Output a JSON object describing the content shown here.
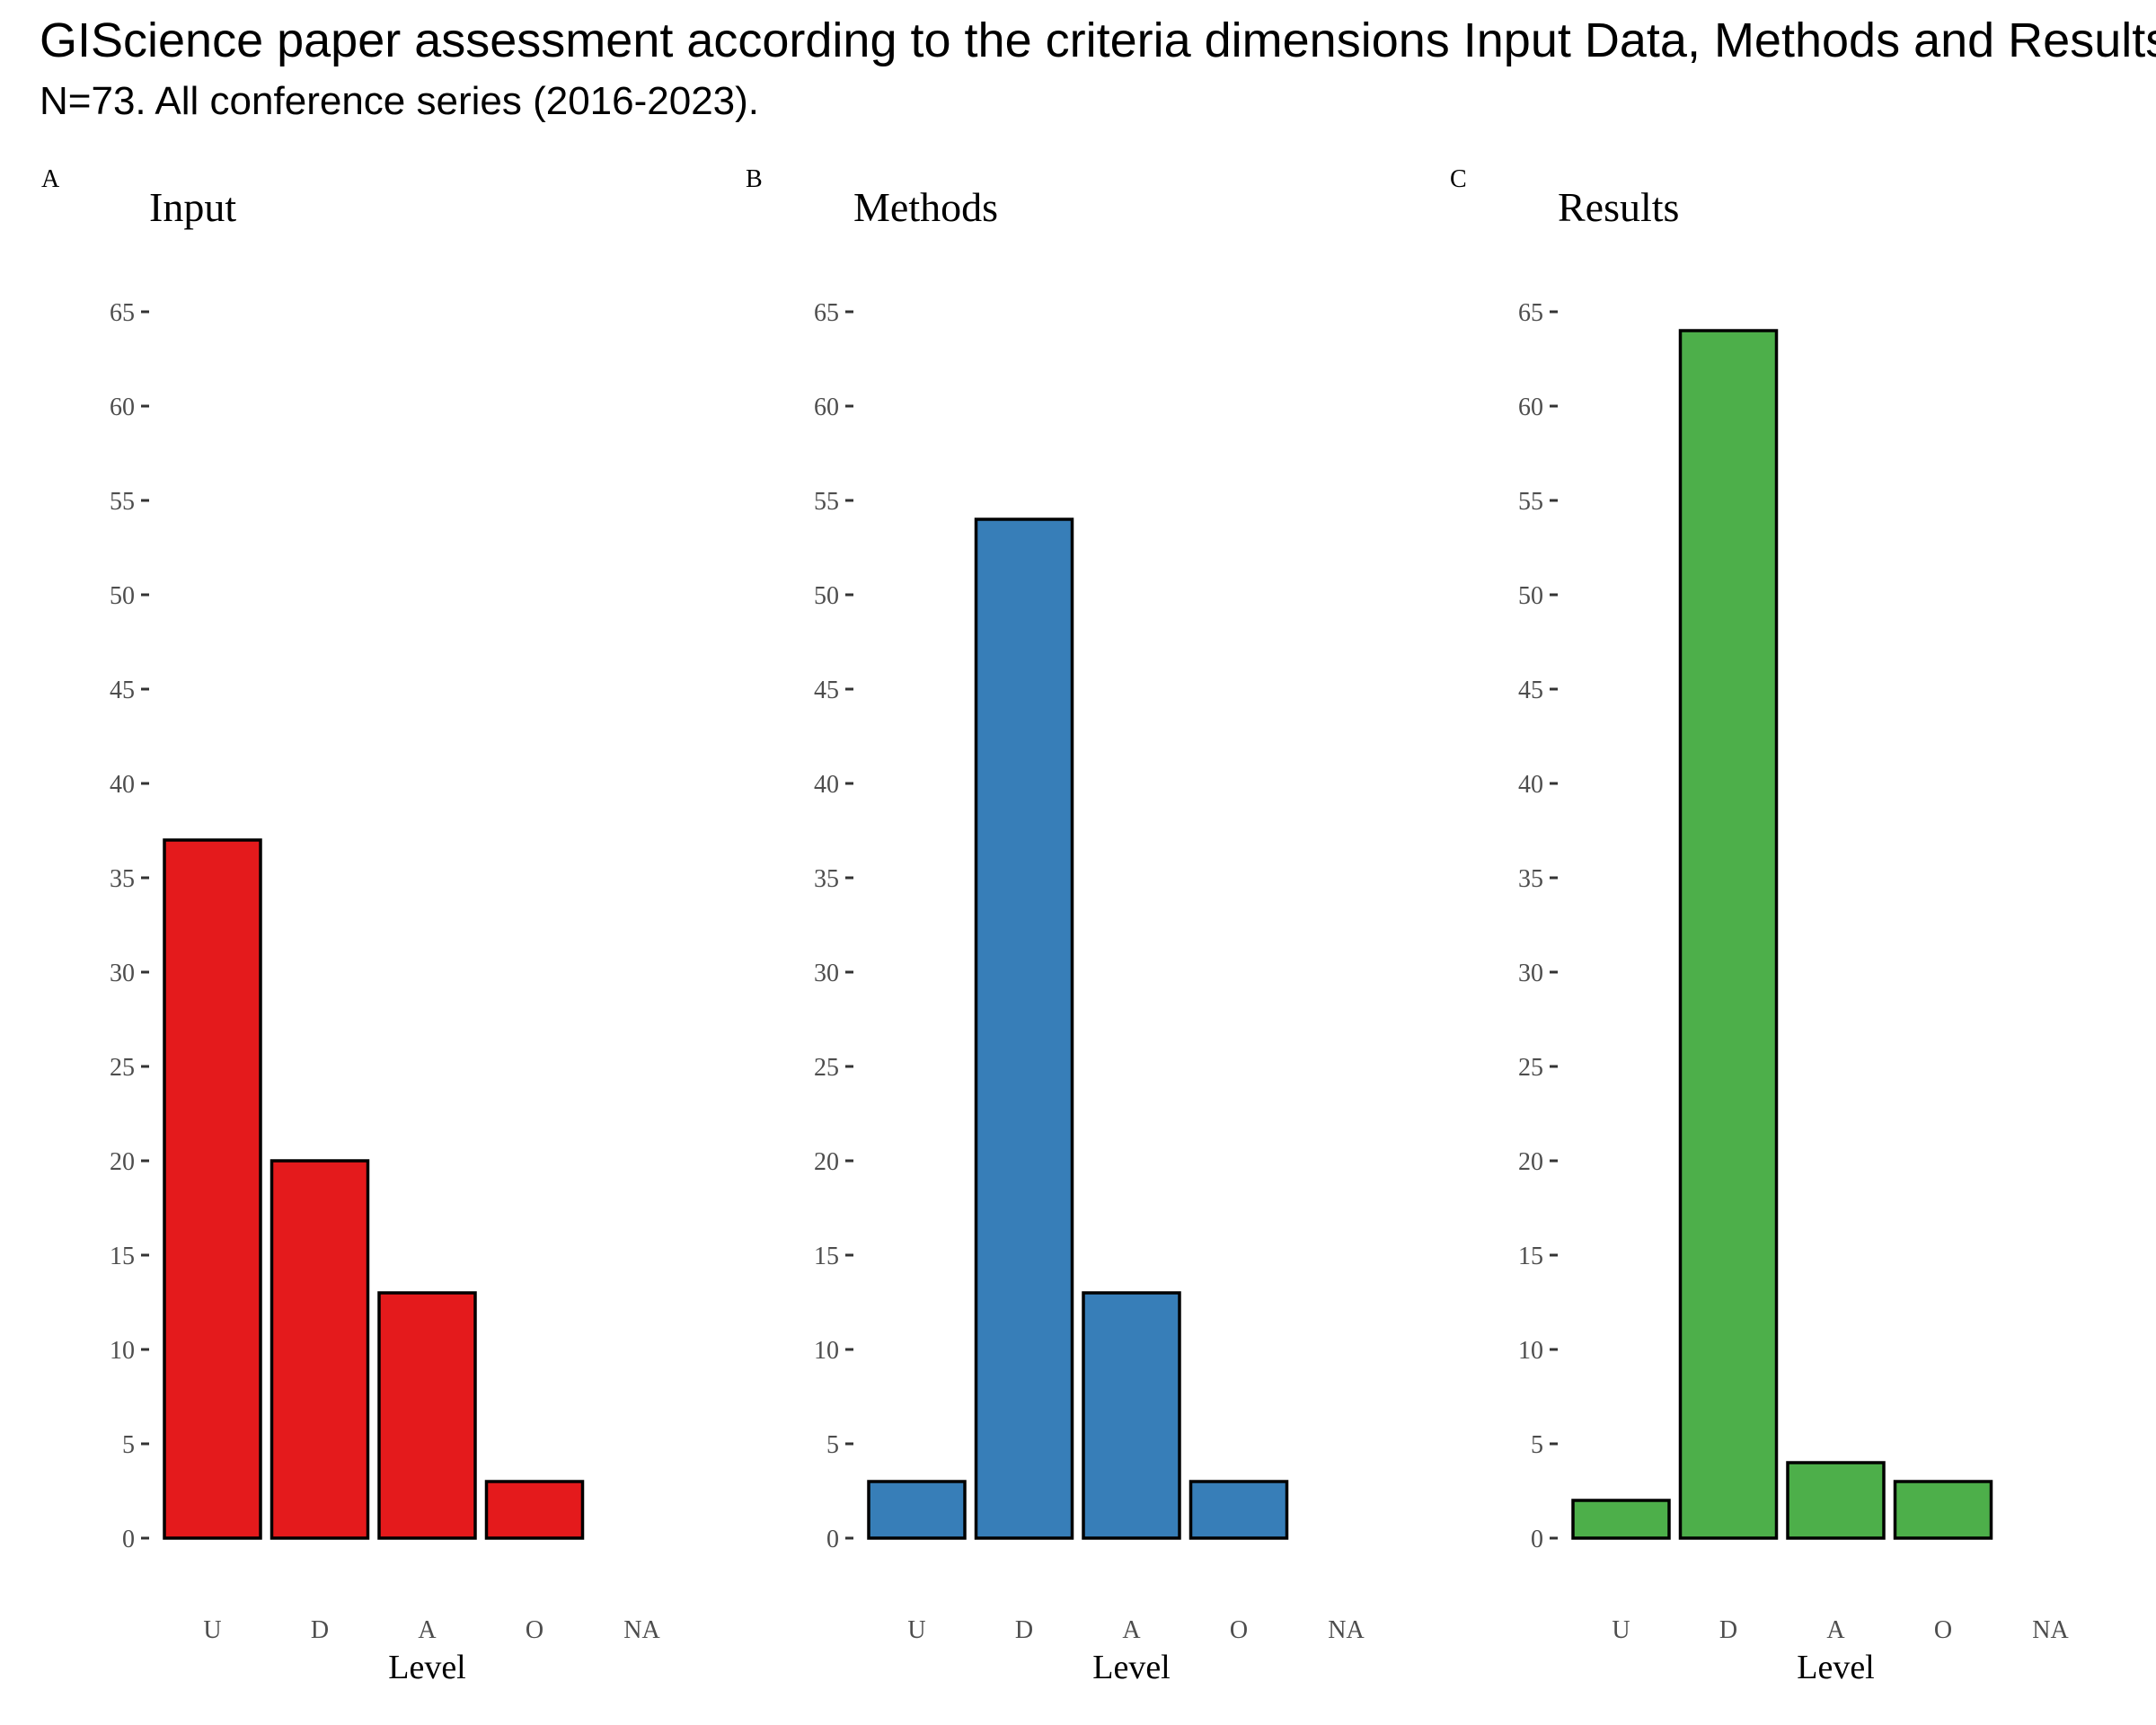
{
  "title": "GIScience paper assessment according to the criteria dimensions Input Data, Methods and Results",
  "subtitle": "N=73. All conference series (2016-2023).",
  "colors": {
    "bar_outline": "#000000",
    "text": "#000000",
    "tick_text": "#4d4d4d"
  },
  "chart_data": [
    {
      "type": "bar",
      "tag": "A",
      "title": "Input",
      "xlabel": "Level",
      "ylabel": "",
      "categories": [
        "U",
        "D",
        "A",
        "O",
        "NA"
      ],
      "values": [
        37,
        20,
        13,
        3,
        0
      ],
      "color": "#E41A1C",
      "ylim": [
        0,
        65
      ],
      "yticks": [
        0,
        5,
        10,
        15,
        20,
        25,
        30,
        35,
        40,
        45,
        50,
        55,
        60,
        65
      ],
      "grid": false
    },
    {
      "type": "bar",
      "tag": "B",
      "title": "Methods",
      "xlabel": "Level",
      "ylabel": "",
      "categories": [
        "U",
        "D",
        "A",
        "O",
        "NA"
      ],
      "values": [
        3,
        54,
        13,
        3,
        0
      ],
      "color": "#377EB8",
      "ylim": [
        0,
        65
      ],
      "yticks": [
        0,
        5,
        10,
        15,
        20,
        25,
        30,
        35,
        40,
        45,
        50,
        55,
        60,
        65
      ],
      "grid": false
    },
    {
      "type": "bar",
      "tag": "C",
      "title": "Results",
      "xlabel": "Level",
      "ylabel": "",
      "categories": [
        "U",
        "D",
        "A",
        "O",
        "NA"
      ],
      "values": [
        2,
        64,
        4,
        3,
        0
      ],
      "color": "#4DAF4A",
      "ylim": [
        0,
        65
      ],
      "yticks": [
        0,
        5,
        10,
        15,
        20,
        25,
        30,
        35,
        40,
        45,
        50,
        55,
        60,
        65
      ],
      "grid": false
    }
  ]
}
